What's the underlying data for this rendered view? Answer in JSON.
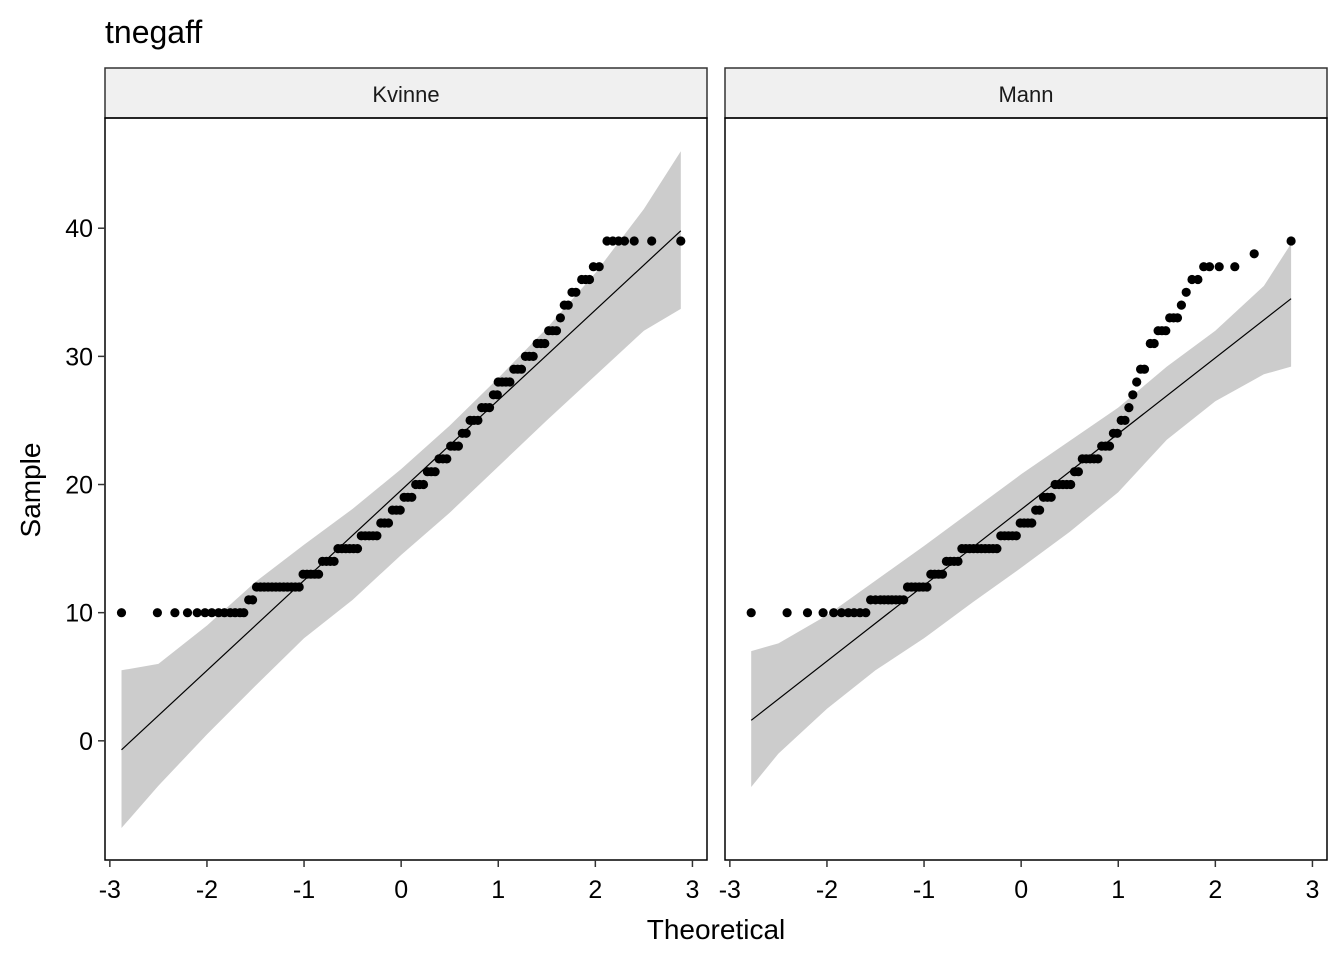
{
  "chart_data": {
    "type": "scatter",
    "title": "tnegaff",
    "xlabel": "Theoretical",
    "ylabel": "Sample",
    "xticks": [
      -3,
      -2,
      -1,
      0,
      1,
      2,
      3
    ],
    "yticks": [
      0,
      10,
      20,
      30,
      40
    ],
    "xlim": [
      -3.05,
      3.15
    ],
    "ylim": [
      -9.3,
      48.6
    ],
    "grid": false,
    "colors": {
      "points": "#000000",
      "line": "#000000",
      "band": "#cccccc",
      "strip": "#f0f0f0"
    },
    "panels": [
      {
        "name": "Kvinne",
        "line": {
          "x": [
            -2.88,
            2.88
          ],
          "y": [
            -0.7,
            39.8
          ]
        },
        "band": {
          "x": [
            -2.88,
            -2.5,
            -2.0,
            -1.5,
            -1.0,
            -0.5,
            0.0,
            0.5,
            1.0,
            1.5,
            2.0,
            2.5,
            2.88
          ],
          "upper": [
            5.5,
            6.0,
            9.0,
            12.4,
            15.3,
            18.1,
            21.2,
            24.6,
            28.3,
            32.2,
            36.5,
            41.5,
            46.0
          ],
          "lower": [
            -6.8,
            -3.5,
            0.5,
            4.3,
            8.0,
            11.0,
            14.5,
            17.8,
            21.4,
            25.0,
            28.5,
            32.0,
            33.7
          ]
        },
        "points": [
          [
            -2.88,
            10
          ],
          [
            -2.51,
            10
          ],
          [
            -2.33,
            10
          ],
          [
            -2.2,
            10
          ],
          [
            -2.1,
            10
          ],
          [
            -2.02,
            10
          ],
          [
            -1.95,
            10
          ],
          [
            -1.88,
            10
          ],
          [
            -1.82,
            10
          ],
          [
            -1.76,
            10
          ],
          [
            -1.71,
            10
          ],
          [
            -1.66,
            10
          ],
          [
            -1.62,
            10
          ],
          [
            -1.57,
            11
          ],
          [
            -1.53,
            11
          ],
          [
            -1.49,
            12
          ],
          [
            -1.45,
            12
          ],
          [
            -1.41,
            12
          ],
          [
            -1.37,
            12
          ],
          [
            -1.33,
            12
          ],
          [
            -1.29,
            12
          ],
          [
            -1.25,
            12
          ],
          [
            -1.21,
            12
          ],
          [
            -1.17,
            12
          ],
          [
            -1.13,
            12
          ],
          [
            -1.09,
            12
          ],
          [
            -1.05,
            12
          ],
          [
            -1.01,
            13
          ],
          [
            -0.97,
            13
          ],
          [
            -0.93,
            13
          ],
          [
            -0.89,
            13
          ],
          [
            -0.85,
            13
          ],
          [
            -0.81,
            14
          ],
          [
            -0.77,
            14
          ],
          [
            -0.73,
            14
          ],
          [
            -0.69,
            14
          ],
          [
            -0.65,
            15
          ],
          [
            -0.61,
            15
          ],
          [
            -0.57,
            15
          ],
          [
            -0.53,
            15
          ],
          [
            -0.49,
            15
          ],
          [
            -0.45,
            15
          ],
          [
            -0.41,
            16
          ],
          [
            -0.37,
            16
          ],
          [
            -0.33,
            16
          ],
          [
            -0.29,
            16
          ],
          [
            -0.25,
            16
          ],
          [
            -0.21,
            17
          ],
          [
            -0.17,
            17
          ],
          [
            -0.13,
            17
          ],
          [
            -0.09,
            18
          ],
          [
            -0.05,
            18
          ],
          [
            -0.01,
            18
          ],
          [
            0.03,
            19
          ],
          [
            0.07,
            19
          ],
          [
            0.11,
            19
          ],
          [
            0.15,
            20
          ],
          [
            0.19,
            20
          ],
          [
            0.23,
            20
          ],
          [
            0.27,
            21
          ],
          [
            0.31,
            21
          ],
          [
            0.35,
            21
          ],
          [
            0.39,
            22
          ],
          [
            0.43,
            22
          ],
          [
            0.47,
            22
          ],
          [
            0.51,
            23
          ],
          [
            0.55,
            23
          ],
          [
            0.59,
            23
          ],
          [
            0.63,
            24
          ],
          [
            0.67,
            24
          ],
          [
            0.71,
            25
          ],
          [
            0.75,
            25
          ],
          [
            0.79,
            25
          ],
          [
            0.83,
            26
          ],
          [
            0.87,
            26
          ],
          [
            0.91,
            26
          ],
          [
            0.95,
            27
          ],
          [
            0.99,
            27
          ],
          [
            1.0,
            28
          ],
          [
            1.04,
            28
          ],
          [
            1.08,
            28
          ],
          [
            1.12,
            28
          ],
          [
            1.16,
            29
          ],
          [
            1.2,
            29
          ],
          [
            1.24,
            29
          ],
          [
            1.28,
            30
          ],
          [
            1.32,
            30
          ],
          [
            1.36,
            30
          ],
          [
            1.4,
            31
          ],
          [
            1.44,
            31
          ],
          [
            1.48,
            31
          ],
          [
            1.52,
            32
          ],
          [
            1.56,
            32
          ],
          [
            1.6,
            32
          ],
          [
            1.64,
            33
          ],
          [
            1.68,
            34
          ],
          [
            1.72,
            34
          ],
          [
            1.76,
            35
          ],
          [
            1.8,
            35
          ],
          [
            1.86,
            36
          ],
          [
            1.9,
            36
          ],
          [
            1.94,
            36
          ],
          [
            1.98,
            37
          ],
          [
            2.04,
            37
          ],
          [
            2.12,
            39
          ],
          [
            2.18,
            39
          ],
          [
            2.24,
            39
          ],
          [
            2.3,
            39
          ],
          [
            2.4,
            39
          ],
          [
            2.58,
            39
          ],
          [
            2.88,
            39
          ]
        ]
      },
      {
        "name": "Mann",
        "line": {
          "x": [
            -2.78,
            2.78
          ],
          "y": [
            1.6,
            34.5
          ]
        },
        "band": {
          "x": [
            -2.78,
            -2.5,
            -2.0,
            -1.5,
            -1.0,
            -0.5,
            0.0,
            0.5,
            1.0,
            1.5,
            2.0,
            2.5,
            2.78
          ],
          "upper": [
            7.0,
            7.6,
            9.8,
            12.5,
            15.2,
            18.0,
            20.8,
            23.4,
            26.0,
            29.2,
            32.0,
            35.5,
            38.8
          ],
          "lower": [
            -3.6,
            -1.0,
            2.5,
            5.5,
            8.0,
            10.8,
            13.5,
            16.3,
            19.4,
            23.5,
            26.5,
            28.6,
            29.2
          ]
        },
        "points": [
          [
            -2.78,
            10
          ],
          [
            -2.41,
            10
          ],
          [
            -2.2,
            10
          ],
          [
            -2.04,
            10
          ],
          [
            -1.93,
            10
          ],
          [
            -1.85,
            10
          ],
          [
            -1.78,
            10
          ],
          [
            -1.72,
            10
          ],
          [
            -1.66,
            10
          ],
          [
            -1.6,
            10
          ],
          [
            -1.55,
            11
          ],
          [
            -1.5,
            11
          ],
          [
            -1.45,
            11
          ],
          [
            -1.41,
            11
          ],
          [
            -1.37,
            11
          ],
          [
            -1.33,
            11
          ],
          [
            -1.29,
            11
          ],
          [
            -1.25,
            11
          ],
          [
            -1.21,
            11
          ],
          [
            -1.17,
            12
          ],
          [
            -1.13,
            12
          ],
          [
            -1.09,
            12
          ],
          [
            -1.05,
            12
          ],
          [
            -1.01,
            12
          ],
          [
            -0.97,
            12
          ],
          [
            -0.93,
            13
          ],
          [
            -0.89,
            13
          ],
          [
            -0.85,
            13
          ],
          [
            -0.81,
            13
          ],
          [
            -0.77,
            14
          ],
          [
            -0.73,
            14
          ],
          [
            -0.69,
            14
          ],
          [
            -0.65,
            14
          ],
          [
            -0.61,
            15
          ],
          [
            -0.57,
            15
          ],
          [
            -0.53,
            15
          ],
          [
            -0.49,
            15
          ],
          [
            -0.45,
            15
          ],
          [
            -0.41,
            15
          ],
          [
            -0.37,
            15
          ],
          [
            -0.33,
            15
          ],
          [
            -0.29,
            15
          ],
          [
            -0.25,
            15
          ],
          [
            -0.21,
            16
          ],
          [
            -0.17,
            16
          ],
          [
            -0.13,
            16
          ],
          [
            -0.09,
            16
          ],
          [
            -0.05,
            16
          ],
          [
            -0.01,
            17
          ],
          [
            0.03,
            17
          ],
          [
            0.07,
            17
          ],
          [
            0.11,
            17
          ],
          [
            0.15,
            18
          ],
          [
            0.19,
            18
          ],
          [
            0.23,
            19
          ],
          [
            0.27,
            19
          ],
          [
            0.31,
            19
          ],
          [
            0.35,
            20
          ],
          [
            0.39,
            20
          ],
          [
            0.43,
            20
          ],
          [
            0.47,
            20
          ],
          [
            0.51,
            20
          ],
          [
            0.55,
            21
          ],
          [
            0.59,
            21
          ],
          [
            0.63,
            22
          ],
          [
            0.67,
            22
          ],
          [
            0.71,
            22
          ],
          [
            0.75,
            22
          ],
          [
            0.79,
            22
          ],
          [
            0.83,
            23
          ],
          [
            0.87,
            23
          ],
          [
            0.91,
            23
          ],
          [
            0.95,
            24
          ],
          [
            0.99,
            24
          ],
          [
            1.03,
            25
          ],
          [
            1.07,
            25
          ],
          [
            1.11,
            26
          ],
          [
            1.15,
            27
          ],
          [
            1.19,
            28
          ],
          [
            1.23,
            29
          ],
          [
            1.27,
            29
          ],
          [
            1.33,
            31
          ],
          [
            1.37,
            31
          ],
          [
            1.41,
            32
          ],
          [
            1.45,
            32
          ],
          [
            1.49,
            32
          ],
          [
            1.53,
            33
          ],
          [
            1.57,
            33
          ],
          [
            1.61,
            33
          ],
          [
            1.65,
            34
          ],
          [
            1.7,
            35
          ],
          [
            1.76,
            36
          ],
          [
            1.82,
            36
          ],
          [
            1.88,
            37
          ],
          [
            1.94,
            37
          ],
          [
            2.04,
            37
          ],
          [
            2.2,
            37
          ],
          [
            2.4,
            38
          ],
          [
            2.78,
            39
          ]
        ]
      }
    ]
  }
}
